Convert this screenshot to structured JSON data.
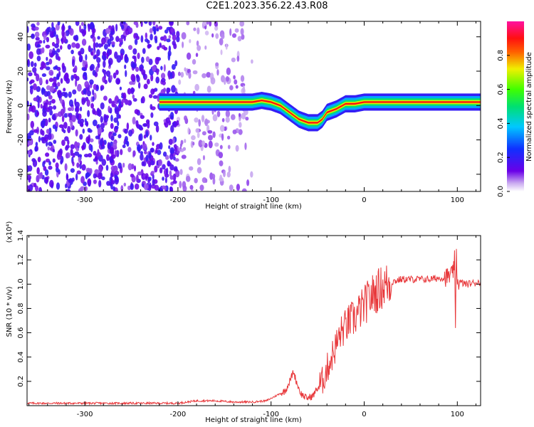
{
  "figure": {
    "title": "C2E1.2023.356.22.43.R08"
  },
  "chart_data": [
    {
      "type": "heatmap",
      "title": "",
      "xlabel": "Height of straight line (km)",
      "ylabel": "Frequency (Hz)",
      "xlim": [
        -362,
        125
      ],
      "ylim": [
        -50,
        49
      ],
      "x_ticks": [
        -300,
        -200,
        -100,
        0,
        100
      ],
      "y_ticks": [
        -40,
        -20,
        0,
        20,
        40
      ],
      "colorbar": {
        "label": "Normalized spectral amplitude",
        "range": [
          0,
          1
        ],
        "ticks": [
          0.0,
          0.2,
          0.4,
          0.6,
          0.8
        ],
        "colormap": "rainbow (purple→blue→cyan→green→yellow→red→magenta)"
      },
      "noise_region_x": [
        -362,
        -120
      ],
      "ridge": {
        "x": [
          -220,
          -180,
          -140,
          -120,
          -110,
          -100,
          -90,
          -80,
          -70,
          -60,
          -50,
          -45,
          -40,
          -30,
          -20,
          -10,
          0,
          20,
          40,
          60,
          80,
          100,
          125
        ],
        "y": [
          2,
          2,
          2,
          2,
          3,
          2,
          0,
          -4,
          -8,
          -10,
          -10,
          -8,
          -4,
          -2,
          1,
          1,
          2,
          2,
          2,
          2,
          2,
          2,
          2
        ]
      },
      "grid": false,
      "legend": "colorbar right"
    },
    {
      "type": "line",
      "title": "",
      "xlabel": "Height of straight line (km)",
      "ylabel": "SNR (10 * v/v)",
      "y_multiplier": "(x10⁴)",
      "xlim": [
        -362,
        125
      ],
      "ylim": [
        0,
        1.4
      ],
      "x_ticks": [
        -300,
        -200,
        -100,
        0,
        100
      ],
      "y_ticks": [
        0.2,
        0.4,
        0.6,
        0.8,
        1.0,
        1.2,
        1.4
      ],
      "y_tick_labels": [
        "0.2",
        "0.4",
        "0.6",
        "0.8",
        "1.0",
        "1.2",
        "1.4"
      ],
      "color": "#e8383b",
      "series": [
        {
          "x": [
            -362,
            -300,
            -250,
            -200,
            -180,
            -160,
            -140,
            -120,
            -105,
            -95,
            -85,
            -80,
            -76,
            -72,
            -68,
            -62,
            -55,
            -50,
            -45,
            -40,
            -35,
            -30,
            -25,
            -20,
            -15,
            -10,
            -5,
            0,
            5,
            10,
            15,
            20,
            25,
            30,
            40,
            50,
            60,
            70,
            80,
            90,
            95,
            97,
            98,
            99,
            100,
            105,
            110,
            125
          ],
          "y": [
            0.02,
            0.02,
            0.02,
            0.02,
            0.04,
            0.04,
            0.03,
            0.03,
            0.04,
            0.08,
            0.12,
            0.2,
            0.28,
            0.18,
            0.1,
            0.06,
            0.08,
            0.15,
            0.2,
            0.3,
            0.4,
            0.5,
            0.6,
            0.65,
            0.7,
            0.72,
            0.78,
            0.82,
            0.88,
            0.92,
            0.95,
            0.98,
            1.0,
            1.02,
            1.04,
            1.04,
            1.04,
            1.04,
            1.05,
            1.06,
            1.08,
            1.2,
            0.6,
            1.3,
            1.02,
            1.01,
            1.0,
            1.02
          ]
        }
      ],
      "grid": false,
      "legend": "none"
    }
  ]
}
